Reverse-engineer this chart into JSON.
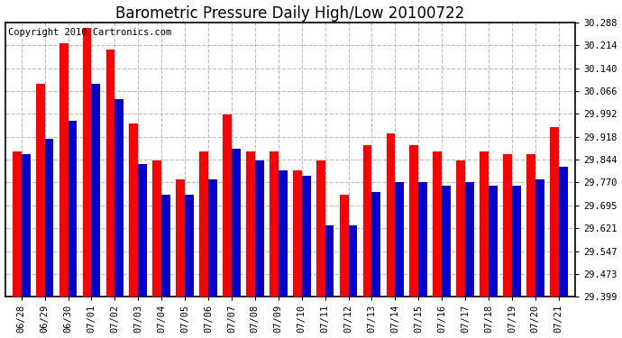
{
  "title": "Barometric Pressure Daily High/Low 20100722",
  "copyright": "Copyright 2010 Cartronics.com",
  "categories": [
    "06/28",
    "06/29",
    "06/30",
    "07/01",
    "07/02",
    "07/03",
    "07/04",
    "07/05",
    "07/06",
    "07/07",
    "07/08",
    "07/09",
    "07/10",
    "07/11",
    "07/12",
    "07/13",
    "07/14",
    "07/15",
    "07/16",
    "07/17",
    "07/18",
    "07/19",
    "07/20",
    "07/21"
  ],
  "highs": [
    29.87,
    30.09,
    30.22,
    30.27,
    30.2,
    29.96,
    29.84,
    29.78,
    29.87,
    29.99,
    29.87,
    29.87,
    29.81,
    29.84,
    29.73,
    29.89,
    29.93,
    29.89,
    29.87,
    29.84,
    29.87,
    29.86,
    29.86,
    29.95
  ],
  "lows": [
    29.86,
    29.91,
    29.97,
    30.09,
    30.04,
    29.83,
    29.73,
    29.73,
    29.78,
    29.88,
    29.84,
    29.81,
    29.79,
    29.63,
    29.63,
    29.74,
    29.77,
    29.77,
    29.76,
    29.77,
    29.76,
    29.76,
    29.78,
    29.82
  ],
  "high_color": "#ff0000",
  "low_color": "#0000cc",
  "ylim_min": 29.399,
  "ylim_max": 30.288,
  "yticks": [
    29.399,
    29.473,
    29.547,
    29.621,
    29.695,
    29.77,
    29.844,
    29.918,
    29.992,
    30.066,
    30.14,
    30.214,
    30.288
  ],
  "background_color": "#ffffff",
  "plot_bg_color": "#ffffff",
  "grid_color": "#bbbbbb",
  "title_fontsize": 12,
  "copyright_fontsize": 7.5,
  "bar_width": 0.38
}
